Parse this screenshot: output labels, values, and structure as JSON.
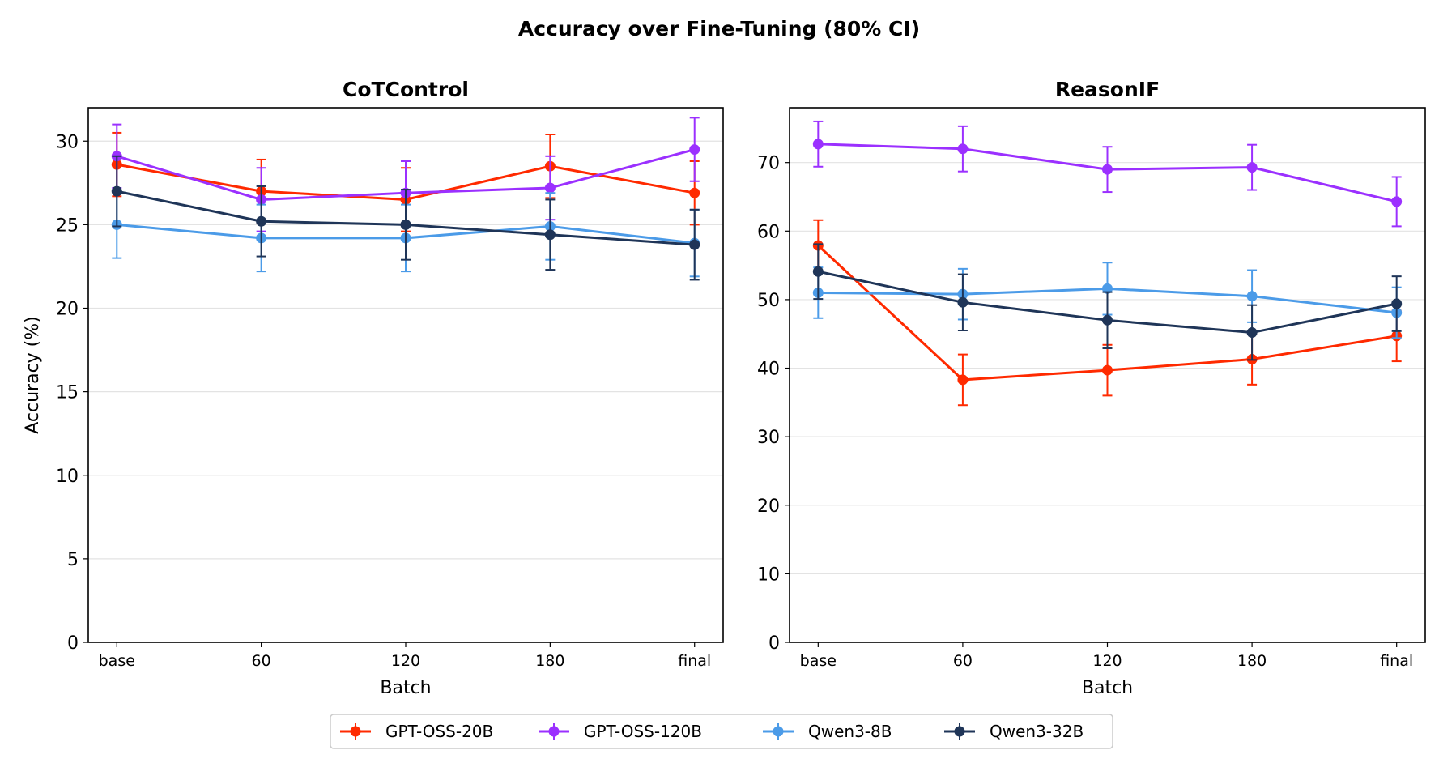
{
  "title": "Accuracy over Fine-Tuning (80% CI)",
  "legend": {
    "placement": "bottom-center",
    "entries": [
      "GPT-OSS-20B",
      "GPT-OSS-120B",
      "Qwen3-8B",
      "Qwen3-32B"
    ]
  },
  "colors": {
    "GPT-OSS-20B": "#ff2a00",
    "GPT-OSS-120B": "#9b30ff",
    "Qwen3-8B": "#4b9be8",
    "Qwen3-32B": "#1f3558"
  },
  "chart_data": [
    {
      "type": "line",
      "title": "CoTControl",
      "xlabel": "Batch",
      "ylabel": "Accuracy (%)",
      "categories": [
        "base",
        "60",
        "120",
        "180",
        "final"
      ],
      "ylim": [
        0,
        32
      ],
      "yticks": [
        0,
        5,
        10,
        15,
        20,
        25,
        30
      ],
      "grid": "horizontal",
      "series": [
        {
          "name": "GPT-OSS-20B",
          "values": [
            28.6,
            27.0,
            26.5,
            28.5,
            26.9
          ],
          "ci": [
            1.9,
            1.9,
            1.9,
            1.9,
            1.9
          ]
        },
        {
          "name": "GPT-OSS-120B",
          "values": [
            29.1,
            26.5,
            26.9,
            27.2,
            29.5
          ],
          "ci": [
            1.9,
            1.9,
            1.9,
            1.9,
            1.9
          ]
        },
        {
          "name": "Qwen3-8B",
          "values": [
            25.0,
            24.2,
            24.2,
            24.9,
            23.9
          ],
          "ci": [
            2.0,
            2.0,
            2.0,
            2.0,
            2.0
          ]
        },
        {
          "name": "Qwen3-32B",
          "values": [
            27.0,
            25.2,
            25.0,
            24.4,
            23.8
          ],
          "ci": [
            2.1,
            2.1,
            2.1,
            2.1,
            2.1
          ]
        }
      ]
    },
    {
      "type": "line",
      "title": "ReasonIF",
      "xlabel": "Batch",
      "ylabel": "",
      "categories": [
        "base",
        "60",
        "120",
        "180",
        "final"
      ],
      "ylim": [
        0,
        78
      ],
      "yticks": [
        0,
        10,
        20,
        30,
        40,
        50,
        60,
        70
      ],
      "grid": "horizontal",
      "series": [
        {
          "name": "GPT-OSS-20B",
          "values": [
            57.9,
            38.3,
            39.7,
            41.3,
            44.7
          ],
          "ci": [
            3.7,
            3.7,
            3.7,
            3.7,
            3.7
          ]
        },
        {
          "name": "GPT-OSS-120B",
          "values": [
            72.7,
            72.0,
            69.0,
            69.3,
            64.3
          ],
          "ci": [
            3.3,
            3.3,
            3.3,
            3.3,
            3.6
          ]
        },
        {
          "name": "Qwen3-8B",
          "values": [
            51.0,
            50.8,
            51.6,
            50.5,
            48.1
          ],
          "ci": [
            3.7,
            3.7,
            3.8,
            3.8,
            3.7
          ]
        },
        {
          "name": "Qwen3-32B",
          "values": [
            54.1,
            49.6,
            47.0,
            45.2,
            49.4
          ],
          "ci": [
            4.0,
            4.1,
            4.1,
            4.0,
            4.0
          ]
        }
      ]
    }
  ]
}
